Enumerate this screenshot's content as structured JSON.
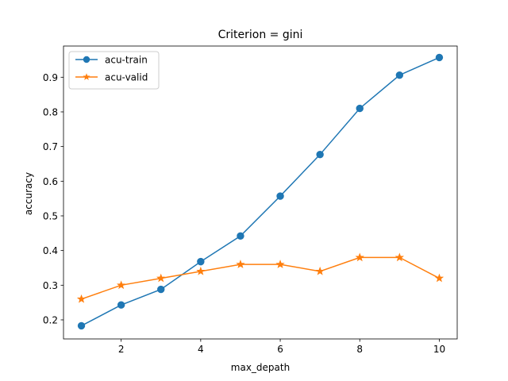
{
  "chart_data": {
    "type": "line",
    "title": "Criterion = gini",
    "xlabel": "max_depath",
    "ylabel": "accuracy",
    "x": [
      1,
      2,
      3,
      4,
      5,
      6,
      7,
      8,
      9,
      10
    ],
    "xlim": [
      0.55,
      10.45
    ],
    "ylim": [
      0.145,
      0.99
    ],
    "xticks": [
      2,
      4,
      6,
      8,
      10
    ],
    "yticks": [
      0.2,
      0.3,
      0.4,
      0.5,
      0.6,
      0.7,
      0.8,
      0.9
    ],
    "grid": false,
    "legend_position": "top-left",
    "series": [
      {
        "name": "acu-train",
        "marker": "circle",
        "color": "#1f77b4",
        "values": [
          0.183,
          0.243,
          0.288,
          0.368,
          0.442,
          0.557,
          0.677,
          0.81,
          0.906,
          0.957
        ]
      },
      {
        "name": "acu-valid",
        "marker": "star",
        "color": "#ff7f0e",
        "values": [
          0.26,
          0.3,
          0.32,
          0.34,
          0.36,
          0.36,
          0.34,
          0.38,
          0.38,
          0.32
        ]
      }
    ]
  }
}
